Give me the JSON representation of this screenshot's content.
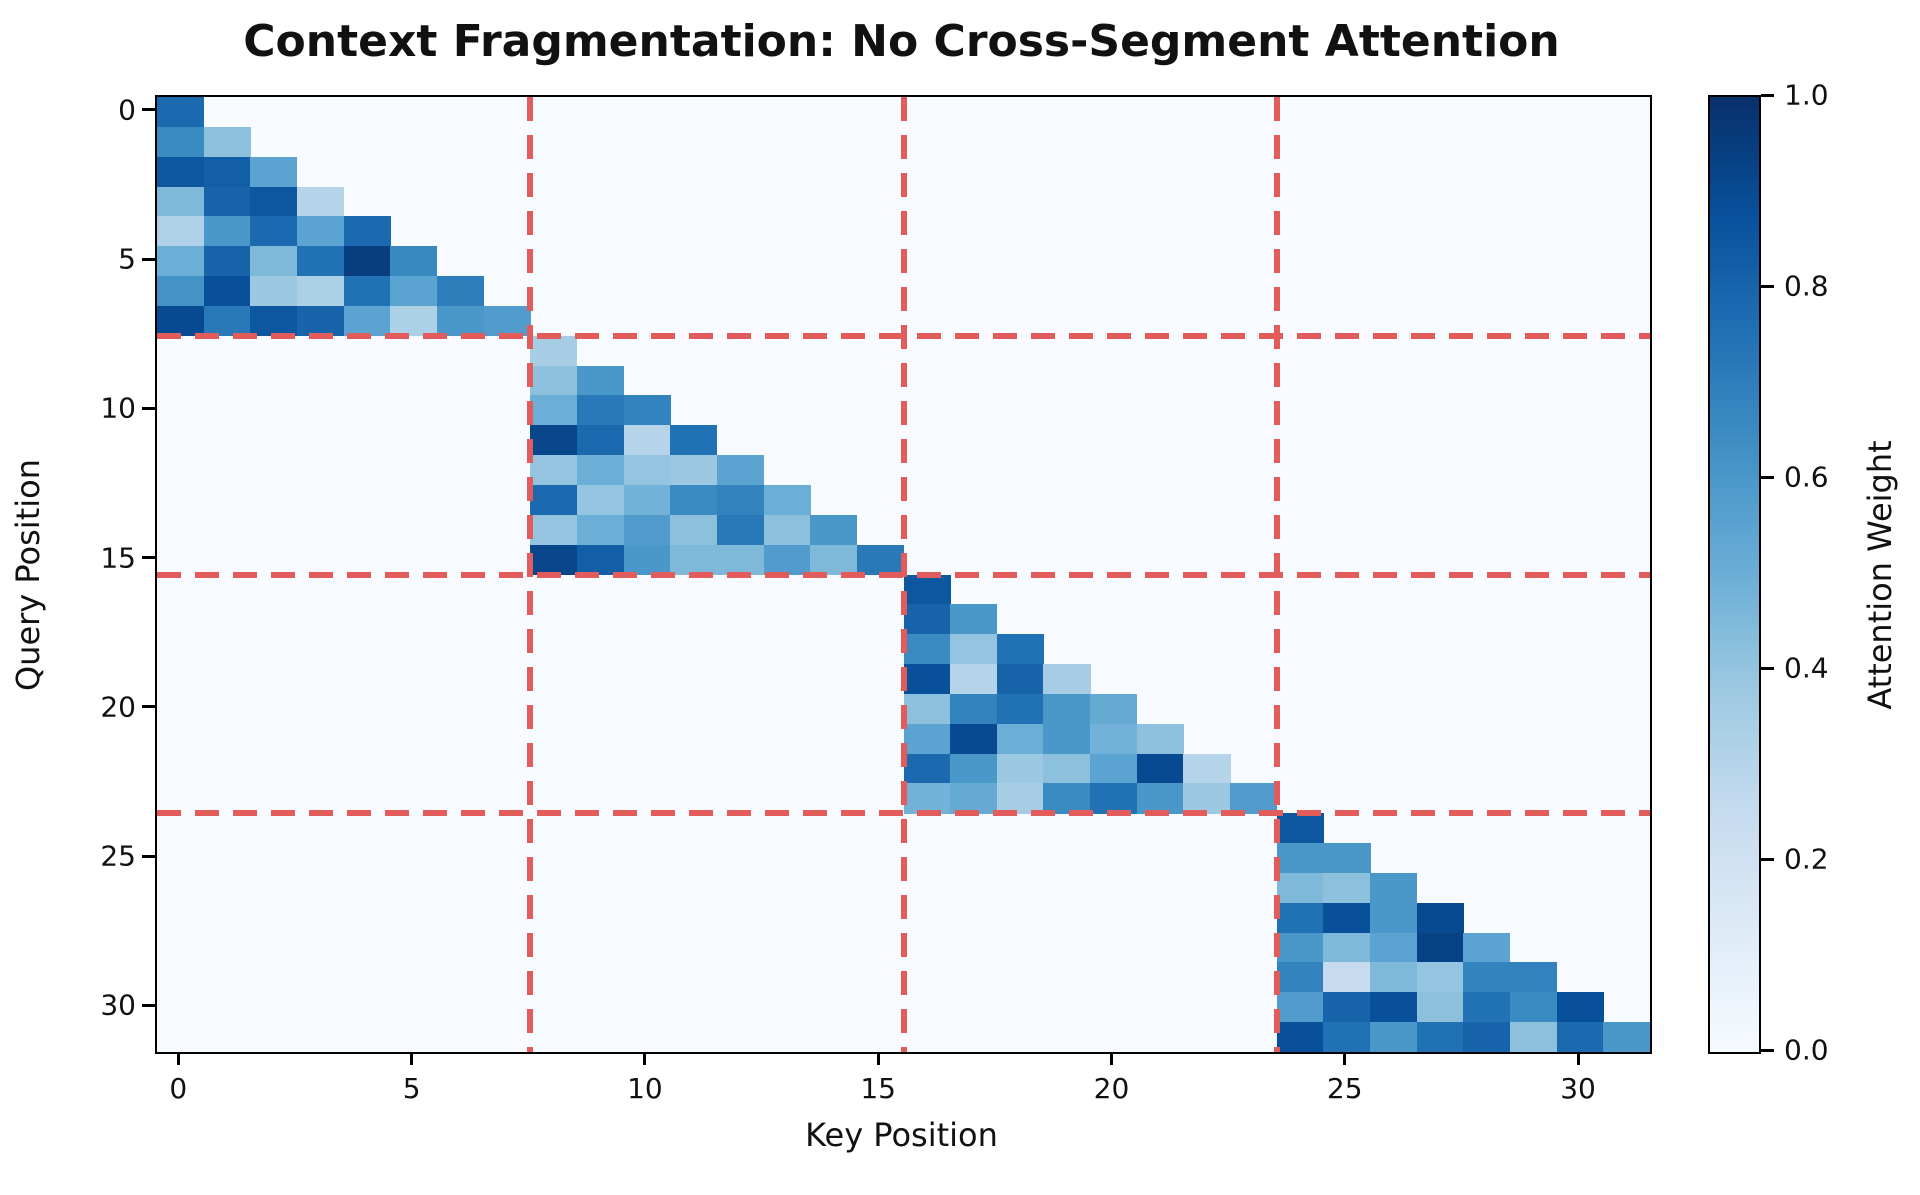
{
  "figure": {
    "title": "Context Fragmentation: No Cross-Segment Attention",
    "x_axis_label": "Key Position",
    "y_axis_label": "Query Position",
    "colorbar_label": "Attention Weight"
  },
  "chart_data": {
    "type": "heatmap",
    "title": "Context Fragmentation: No Cross-Segment Attention",
    "xlabel": "Key Position",
    "ylabel": "Query Position",
    "matrix_size": 32,
    "num_segments": 4,
    "segment_size": 8,
    "segment_boundaries": [
      7.5,
      15.5,
      23.5
    ],
    "x_ticks": [
      0,
      5,
      10,
      15,
      20,
      25,
      30
    ],
    "y_ticks": [
      0,
      5,
      10,
      15,
      20,
      25,
      30
    ],
    "value_range": [
      0.0,
      1.0
    ],
    "background_value": 0.0,
    "colorbar": {
      "label": "Attention Weight",
      "ticks": [
        0.0,
        0.2,
        0.4,
        0.6,
        0.8,
        1.0
      ],
      "min": 0.0,
      "max": 1.0
    },
    "colormap": {
      "name": "Blues",
      "stops": [
        [
          0.0,
          "#f7fbff"
        ],
        [
          0.125,
          "#deebf7"
        ],
        [
          0.25,
          "#c6dbef"
        ],
        [
          0.375,
          "#9ecae1"
        ],
        [
          0.5,
          "#6baed6"
        ],
        [
          0.625,
          "#4292c6"
        ],
        [
          0.75,
          "#2171b5"
        ],
        [
          0.875,
          "#08519c"
        ],
        [
          1.0,
          "#08306b"
        ]
      ]
    },
    "boundary_line_color": "#e35c5c",
    "segments": [
      {
        "name": "segment-1",
        "row_start": 0,
        "col_start": 0,
        "rows": [
          [
            0.78
          ],
          [
            0.65,
            0.42
          ],
          [
            0.85,
            0.82,
            0.55
          ],
          [
            0.45,
            0.8,
            0.85,
            0.3
          ],
          [
            0.32,
            0.6,
            0.78,
            0.55,
            0.78
          ],
          [
            0.5,
            0.8,
            0.45,
            0.75,
            0.95,
            0.66
          ],
          [
            0.62,
            0.88,
            0.38,
            0.33,
            0.75,
            0.55,
            0.7
          ],
          [
            0.9,
            0.72,
            0.85,
            0.8,
            0.55,
            0.33,
            0.6,
            0.58
          ]
        ]
      },
      {
        "name": "segment-2",
        "row_start": 8,
        "col_start": 8,
        "rows": [
          [
            0.35
          ],
          [
            0.42,
            0.6
          ],
          [
            0.5,
            0.72,
            0.68
          ],
          [
            0.92,
            0.78,
            0.3,
            0.75
          ],
          [
            0.4,
            0.5,
            0.4,
            0.38,
            0.55
          ],
          [
            0.78,
            0.4,
            0.48,
            0.65,
            0.68,
            0.5
          ],
          [
            0.4,
            0.5,
            0.58,
            0.42,
            0.72,
            0.42,
            0.6
          ],
          [
            0.92,
            0.82,
            0.6,
            0.45,
            0.45,
            0.58,
            0.45,
            0.72
          ]
        ]
      },
      {
        "name": "segment-3",
        "row_start": 16,
        "col_start": 16,
        "rows": [
          [
            0.85
          ],
          [
            0.8,
            0.6
          ],
          [
            0.65,
            0.4,
            0.75
          ],
          [
            0.88,
            0.3,
            0.8,
            0.35
          ],
          [
            0.42,
            0.68,
            0.75,
            0.6,
            0.52
          ],
          [
            0.55,
            0.9,
            0.5,
            0.6,
            0.48,
            0.42
          ],
          [
            0.78,
            0.6,
            0.38,
            0.42,
            0.55,
            0.9,
            0.3
          ],
          [
            0.48,
            0.52,
            0.35,
            0.65,
            0.75,
            0.6,
            0.38,
            0.58
          ]
        ]
      },
      {
        "name": "segment-4",
        "row_start": 24,
        "col_start": 24,
        "rows": [
          [
            0.85
          ],
          [
            0.6,
            0.6
          ],
          [
            0.45,
            0.42,
            0.6
          ],
          [
            0.75,
            0.88,
            0.6,
            0.9
          ],
          [
            0.6,
            0.45,
            0.55,
            0.93,
            0.55
          ],
          [
            0.68,
            0.25,
            0.45,
            0.4,
            0.68,
            0.68
          ],
          [
            0.58,
            0.8,
            0.88,
            0.42,
            0.75,
            0.65,
            0.88
          ],
          [
            0.88,
            0.75,
            0.6,
            0.75,
            0.8,
            0.42,
            0.78,
            0.6
          ]
        ]
      }
    ]
  }
}
